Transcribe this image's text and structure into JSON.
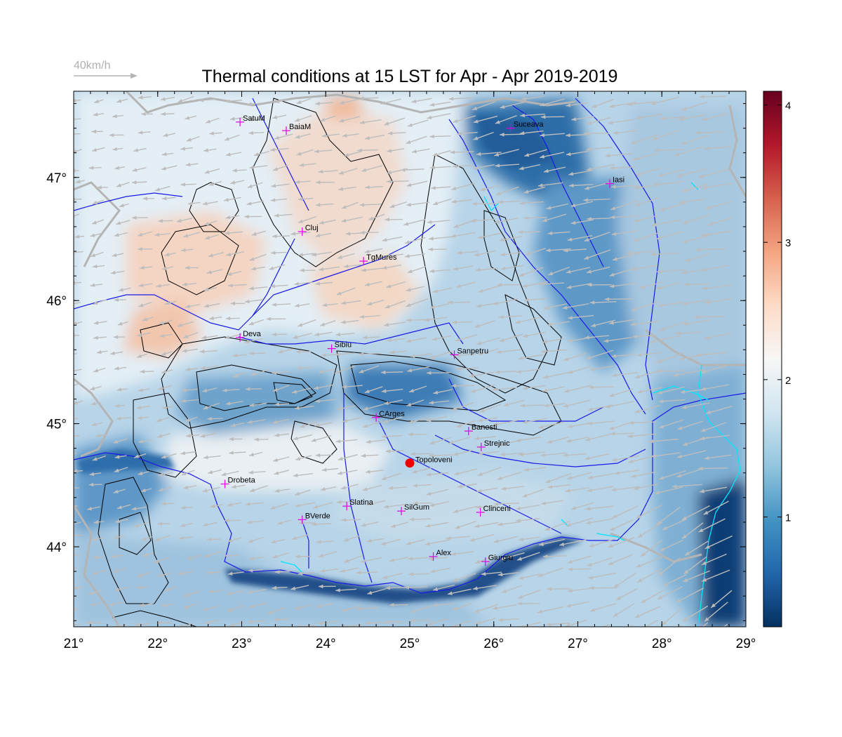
{
  "title": "Thermal conditions at 15 LST for Apr - Apr  2019-2019",
  "wind_scale": {
    "label": "40km/h",
    "speed_kmh": 40
  },
  "map": {
    "lon_range": [
      21,
      29
    ],
    "lat_range": [
      43.35,
      47.7
    ],
    "lon_ticks": [
      21,
      22,
      23,
      24,
      25,
      26,
      27,
      28,
      29
    ],
    "lon_tick_labels": [
      "21°",
      "22°",
      "23°",
      "24°",
      "25°",
      "26°",
      "27°",
      "28°",
      "29°"
    ],
    "lat_ticks": [
      44,
      45,
      46,
      47
    ],
    "lat_tick_labels": [
      "44°",
      "45°",
      "46°",
      "47°"
    ],
    "prevailing_wind": "from east-northeast",
    "colors": {
      "river": "#1a1ae6",
      "coast": "#00e5ff",
      "border": "#b4b4b4",
      "contour": "#000000",
      "vector": "#bdbdbd",
      "station_marker": "#e000e0",
      "highlight": "#ee0000"
    }
  },
  "colorbar": {
    "min": 0.2,
    "max": 4.1,
    "ticks": [
      1,
      2,
      3,
      4
    ],
    "tick_labels": [
      "1",
      "2",
      "3",
      "4"
    ],
    "colors": [
      "#053061",
      "#2166ac",
      "#4393c3",
      "#92c5de",
      "#d1e5f0",
      "#f7f7f7",
      "#fddbc7",
      "#f4a582",
      "#d6604d",
      "#b2182b",
      "#67001f"
    ]
  },
  "cities": [
    {
      "name": "SatuM",
      "lon": 22.98,
      "lat": 47.45
    },
    {
      "name": "BaiaM",
      "lon": 23.53,
      "lat": 47.38
    },
    {
      "name": "Suceava",
      "lon": 26.2,
      "lat": 47.4
    },
    {
      "name": "Iasi",
      "lon": 27.38,
      "lat": 46.95
    },
    {
      "name": "Cluj",
      "lon": 23.72,
      "lat": 46.56
    },
    {
      "name": "TgMures",
      "lon": 24.45,
      "lat": 46.32
    },
    {
      "name": "Deva",
      "lon": 22.98,
      "lat": 45.7
    },
    {
      "name": "Sibiu",
      "lon": 24.07,
      "lat": 45.61
    },
    {
      "name": "Sanpetru",
      "lon": 25.53,
      "lat": 45.56
    },
    {
      "name": "CArges",
      "lon": 24.6,
      "lat": 45.05
    },
    {
      "name": "Banesti",
      "lon": 25.7,
      "lat": 44.94
    },
    {
      "name": "Strejnic",
      "lon": 25.85,
      "lat": 44.81
    },
    {
      "name": "Drobeta",
      "lon": 22.8,
      "lat": 44.51
    },
    {
      "name": "Slatina",
      "lon": 24.25,
      "lat": 44.33
    },
    {
      "name": "SilGum",
      "lon": 24.9,
      "lat": 44.29
    },
    {
      "name": "Clinceni",
      "lon": 25.84,
      "lat": 44.28
    },
    {
      "name": "BVerde",
      "lon": 23.72,
      "lat": 44.22
    },
    {
      "name": "Alex",
      "lon": 25.28,
      "lat": 43.92
    },
    {
      "name": "Giurgiu",
      "lon": 25.9,
      "lat": 43.88
    }
  ],
  "highlight_site": {
    "name": "Topoloveni",
    "lon": 25.0,
    "lat": 44.68
  }
}
